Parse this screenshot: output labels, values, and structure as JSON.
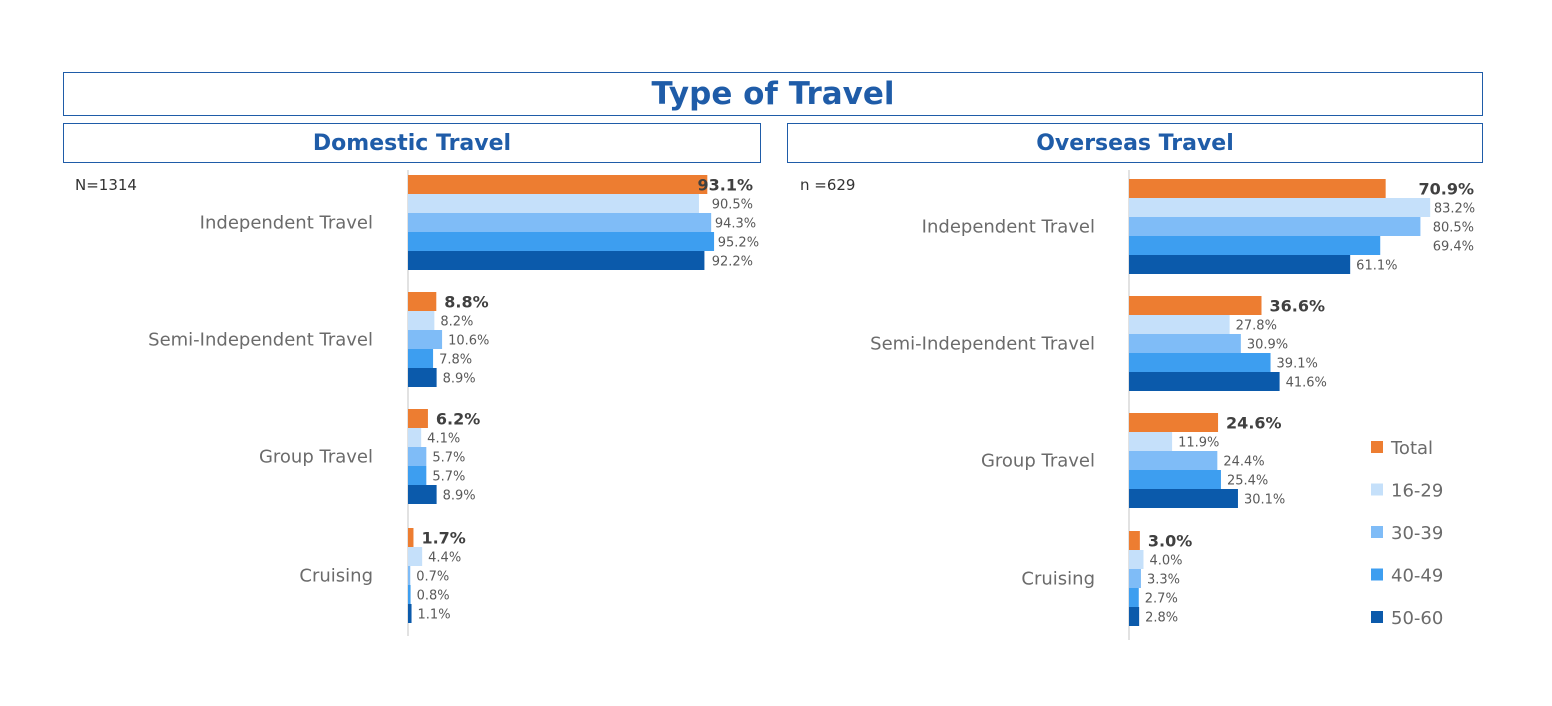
{
  "title": "Type of Travel",
  "panels": [
    {
      "heading": "Domestic Travel",
      "n_label": "N=1314"
    },
    {
      "heading": "Overseas Travel",
      "n_label": "n =629"
    }
  ],
  "colors": {
    "Total": "#ed7d31",
    "16-29": "#c5e0fa",
    "30-39": "#7fbcf7",
    "40-49": "#3d9ef0",
    "50-60": "#0b5aab",
    "border": "#1f5ca8"
  },
  "chart_data": [
    {
      "type": "bar",
      "title": "Domestic Travel",
      "categories": [
        "Independent Travel",
        "Semi-Independent Travel",
        "Group Travel",
        "Cruising"
      ],
      "series": [
        {
          "name": "Total",
          "values": [
            93.1,
            8.8,
            6.2,
            1.7
          ]
        },
        {
          "name": "16-29",
          "values": [
            90.5,
            8.2,
            4.1,
            4.4
          ]
        },
        {
          "name": "30-39",
          "values": [
            94.3,
            10.6,
            5.7,
            0.7
          ]
        },
        {
          "name": "40-49",
          "values": [
            95.2,
            7.8,
            5.7,
            0.8
          ]
        },
        {
          "name": "50-60",
          "values": [
            92.2,
            8.9,
            8.9,
            1.1
          ]
        }
      ],
      "value_labels": [
        [
          "93.1%",
          "90.5%",
          "94.3%",
          "95.2%",
          "92.2%"
        ],
        [
          "8.8%",
          "8.2%",
          "10.6%",
          "7.8%",
          "8.9%"
        ],
        [
          "6.2%",
          "4.1%",
          "5.7%",
          "5.7%",
          "8.9%"
        ],
        [
          "1.7%",
          "4.4%",
          "0.7%",
          "0.8%",
          "1.1%"
        ]
      ],
      "orientation": "horizontal",
      "xlim": [
        0,
        100
      ]
    },
    {
      "type": "bar",
      "title": "Overseas Travel",
      "categories": [
        "Independent Travel",
        "Semi-Independent Travel",
        "Group Travel",
        "Cruising"
      ],
      "series": [
        {
          "name": "Total",
          "values": [
            70.9,
            36.6,
            24.6,
            3.0
          ]
        },
        {
          "name": "16-29",
          "values": [
            83.2,
            27.8,
            11.9,
            4.0
          ]
        },
        {
          "name": "30-39",
          "values": [
            80.5,
            30.9,
            24.4,
            3.3
          ]
        },
        {
          "name": "40-49",
          "values": [
            69.4,
            39.1,
            25.4,
            2.7
          ]
        },
        {
          "name": "50-60",
          "values": [
            61.1,
            41.6,
            30.1,
            2.8
          ]
        }
      ],
      "value_labels": [
        [
          "70.9%",
          "83.2%",
          "80.5%",
          "69.4%",
          "61.1%"
        ],
        [
          "36.6%",
          "27.8%",
          "30.9%",
          "39.1%",
          "41.6%"
        ],
        [
          "24.6%",
          "11.9%",
          "24.4%",
          "25.4%",
          "30.1%"
        ],
        [
          "3.0%",
          "4.0%",
          "3.3%",
          "2.7%",
          "2.8%"
        ]
      ],
      "orientation": "horizontal",
      "xlim": [
        0,
        100
      ]
    }
  ],
  "legend": {
    "position": "bottom-right",
    "items": [
      "Total",
      "16-29",
      "30-39",
      "40-49",
      "50-60"
    ]
  }
}
